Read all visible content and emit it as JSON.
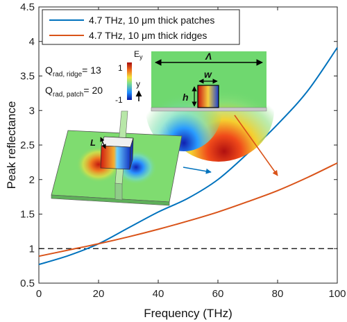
{
  "chart_data": {
    "type": "line",
    "xlabel": "Frequency (THz)",
    "ylabel": "Peak reflectance",
    "xlim": [
      0,
      100
    ],
    "ylim": [
      0.5,
      4.5
    ],
    "xticks": [
      0,
      20,
      40,
      60,
      80,
      100
    ],
    "yticks": [
      0.5,
      1,
      1.5,
      2,
      2.5,
      3,
      3.5,
      4,
      4.5
    ],
    "xtick_labels": [
      "0",
      "20",
      "40",
      "60",
      "80",
      "100"
    ],
    "ytick_labels": [
      "0.5",
      "1",
      "1.5",
      "2",
      "2.5",
      "3",
      "3.5",
      "4",
      "4.5"
    ],
    "grid": false,
    "legend_position": "top-left",
    "reference_line": {
      "y": 1,
      "style": "dashed",
      "color": "#000000"
    },
    "series": [
      {
        "name": "4.7 THz, 10 μm thick patches",
        "color": "#0072BD",
        "x": [
          0,
          10,
          20,
          30,
          40,
          50,
          60,
          70,
          80,
          90,
          100
        ],
        "y": [
          0.77,
          0.9,
          1.07,
          1.3,
          1.53,
          1.73,
          2.0,
          2.38,
          2.8,
          3.28,
          3.91
        ]
      },
      {
        "name": "4.7 THz, 10 μm thick ridges",
        "color": "#D95319",
        "x": [
          0,
          10,
          20,
          30,
          40,
          50,
          60,
          70,
          80,
          90,
          100
        ],
        "y": [
          0.89,
          0.98,
          1.07,
          1.17,
          1.28,
          1.4,
          1.53,
          1.68,
          1.84,
          2.03,
          2.24
        ]
      }
    ],
    "annotations": {
      "q_ridge_main": "Q",
      "q_ridge_sub": "rad, ridge",
      "q_ridge_value": "= 13",
      "q_patch_main": "Q",
      "q_patch_sub": "rad, patch",
      "q_patch_value": "= 20",
      "colorbar_title": "E",
      "colorbar_title_sub": "y",
      "colorbar_max": "1",
      "colorbar_min": "-1",
      "axis_y_label": "y",
      "inset_lambda": "Λ",
      "inset_w": "w",
      "inset_h": "h",
      "inset_L": "L"
    }
  }
}
